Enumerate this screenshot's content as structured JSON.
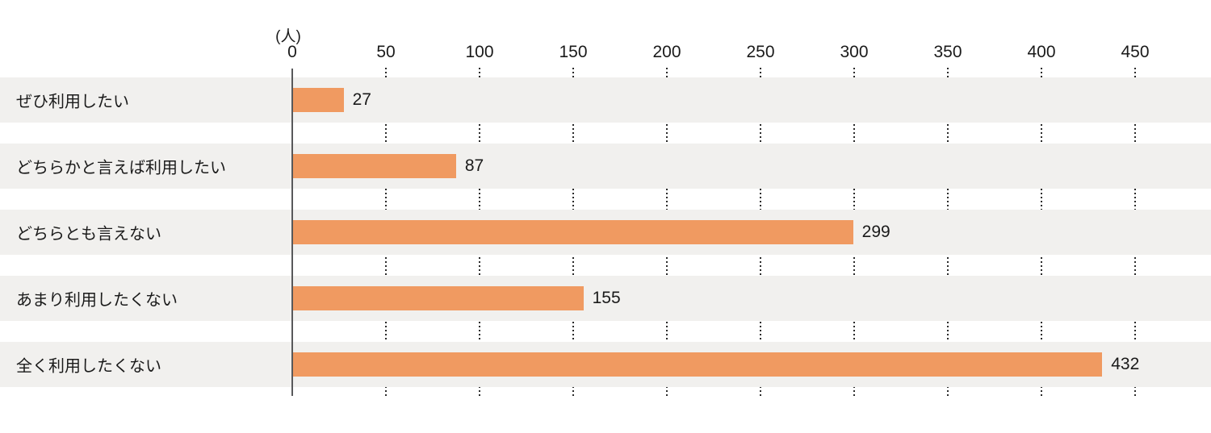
{
  "chart_data": {
    "type": "bar",
    "orientation": "horizontal",
    "title": "",
    "unit_label": "(人)",
    "categories": [
      "ぜひ利用したい",
      "どちらかと言えば利用したい",
      "どちらとも言えない",
      "あまり利用したくない",
      "全く利用したくない"
    ],
    "values": [
      27,
      87,
      299,
      155,
      432
    ],
    "x_ticks": [
      0,
      50,
      100,
      150,
      200,
      250,
      300,
      350,
      400,
      450
    ],
    "xlim": [
      0,
      490
    ],
    "grid": "dotted-vertical",
    "legend": "none",
    "colors": {
      "bar": "#f09a61",
      "row_background": "#f1f0ee",
      "axis_line": "#58595b",
      "gridline": "#2b2b2b",
      "text": "#1a1a1a"
    }
  }
}
